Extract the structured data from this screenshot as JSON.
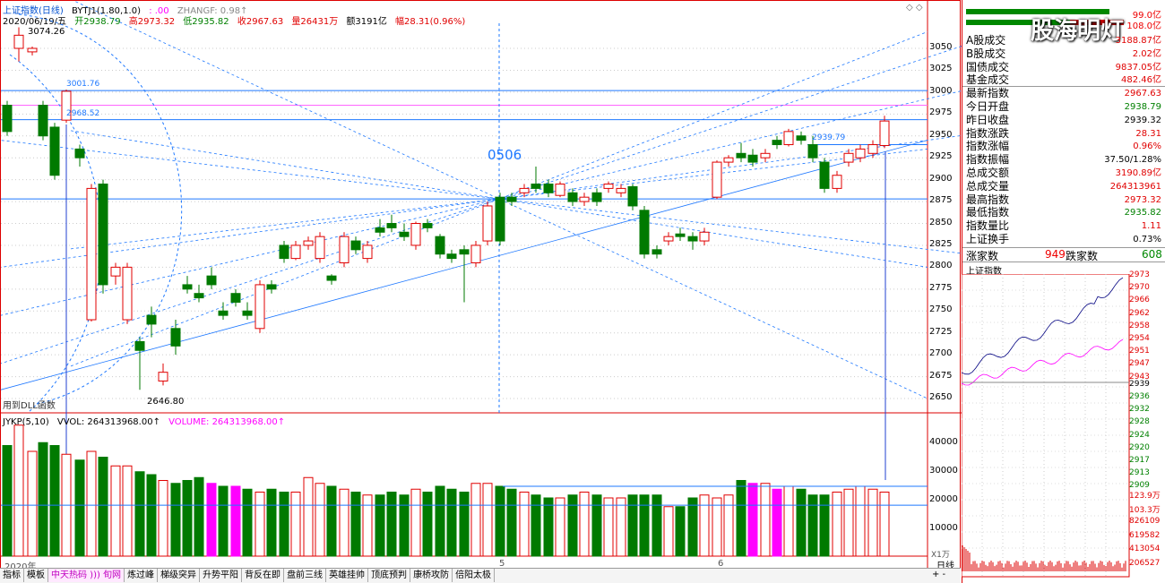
{
  "header": {
    "title": "上证指数(日线)",
    "indicator": "BYTJ1(1.80,1.0)",
    "indicator_val": ": .00",
    "zhangf": "ZHANGF: 0.98↑",
    "date": "2020/06/19/五",
    "open": "开2938.79",
    "high": "高2973.32",
    "low": "低2935.82",
    "close": "收2967.63",
    "vol": "量26431万",
    "amount": "额3191亿",
    "pct": "幅28.31(0.96%)"
  },
  "price_axis": [
    "3050",
    "3025",
    "3000",
    "2975",
    "2950",
    "2925",
    "2900",
    "2875",
    "2850",
    "2825",
    "2800",
    "2775",
    "2750",
    "2725",
    "2700",
    "2675",
    "2650"
  ],
  "annotations": {
    "hi": "3074.26",
    "lo": "2646.80",
    "a1": "3001.76",
    "a2": "2968.52",
    "a3": "2939.79",
    "center": "0506",
    "note": "用到DLL函数"
  },
  "volume": {
    "header": "JYKP(5,10)",
    "vvol": "VVOL: 264313968.00↑",
    "volume_label": "VOLUME: 264313968.00↑",
    "axis": [
      "40000",
      "30000",
      "20000",
      "10000"
    ],
    "unit": "X1万"
  },
  "bottom": {
    "year": "2020年",
    "month5": "5",
    "month6": "6",
    "period": "日线"
  },
  "tabs": [
    "指标",
    "模板",
    "中天热码 ))) 旬网",
    "炼过峰",
    "梯级突异",
    "升势平阳",
    "背反在即",
    "盘前三线",
    "英雄挂帅",
    "顶底预判",
    "康桥攻防",
    "倍阳太极"
  ],
  "right_panel": {
    "watermark": "股海明灯",
    "top_vals": [
      "99.0亿",
      "108.0亿"
    ],
    "rows": [
      {
        "k": "A股成交",
        "v": "3188.87亿",
        "c": "red"
      },
      {
        "k": "B股成交",
        "v": "2.02亿",
        "c": "red"
      },
      {
        "k": "国债成交",
        "v": "9837.05亿",
        "c": "red"
      },
      {
        "k": "基金成交",
        "v": "482.46亿",
        "c": "red"
      },
      {
        "k": "最新指数",
        "v": "2967.63",
        "c": "red"
      },
      {
        "k": "今日开盘",
        "v": "2938.79",
        "c": "grn"
      },
      {
        "k": "昨日收盘",
        "v": "2939.32",
        "c": "blk"
      },
      {
        "k": "指数涨跌",
        "v": "28.31",
        "c": "red"
      },
      {
        "k": "指数涨幅",
        "v": "0.96%",
        "c": "red"
      },
      {
        "k": "指数振幅",
        "v": "37.50/1.28%",
        "c": "blk"
      },
      {
        "k": "总成交额",
        "v": "3190.89亿",
        "c": "red"
      },
      {
        "k": "总成交量",
        "v": "264313961",
        "c": "red"
      },
      {
        "k": "最高指数",
        "v": "2973.32",
        "c": "red"
      },
      {
        "k": "最低指数",
        "v": "2935.82",
        "c": "grn"
      },
      {
        "k": "指数量比",
        "v": "1.11",
        "c": "red"
      },
      {
        "k": "上证换手",
        "v": "0.73%",
        "c": "blk"
      }
    ],
    "up_label": "涨家数",
    "up_val": "949",
    "down_label": "跌家数",
    "down_val": "608",
    "mini_title": "上证指数",
    "mini_axis_red": [
      "2973",
      "2970",
      "2966",
      "2962",
      "2958",
      "2954",
      "2951",
      "2947",
      "2943"
    ],
    "mini_axis_mid": "2939",
    "mini_axis_grn": [
      "2936",
      "2932",
      "2928",
      "2924",
      "2920",
      "2917",
      "2913",
      "2909"
    ],
    "mini_vol_axis": [
      "123.9万",
      "103.3万",
      "826109",
      "619582",
      "413054",
      "206527"
    ]
  },
  "colors": {
    "up": "#e00000",
    "down": "#007a00",
    "line": "#1e78ff",
    "magenta": "#ff00ff"
  }
}
